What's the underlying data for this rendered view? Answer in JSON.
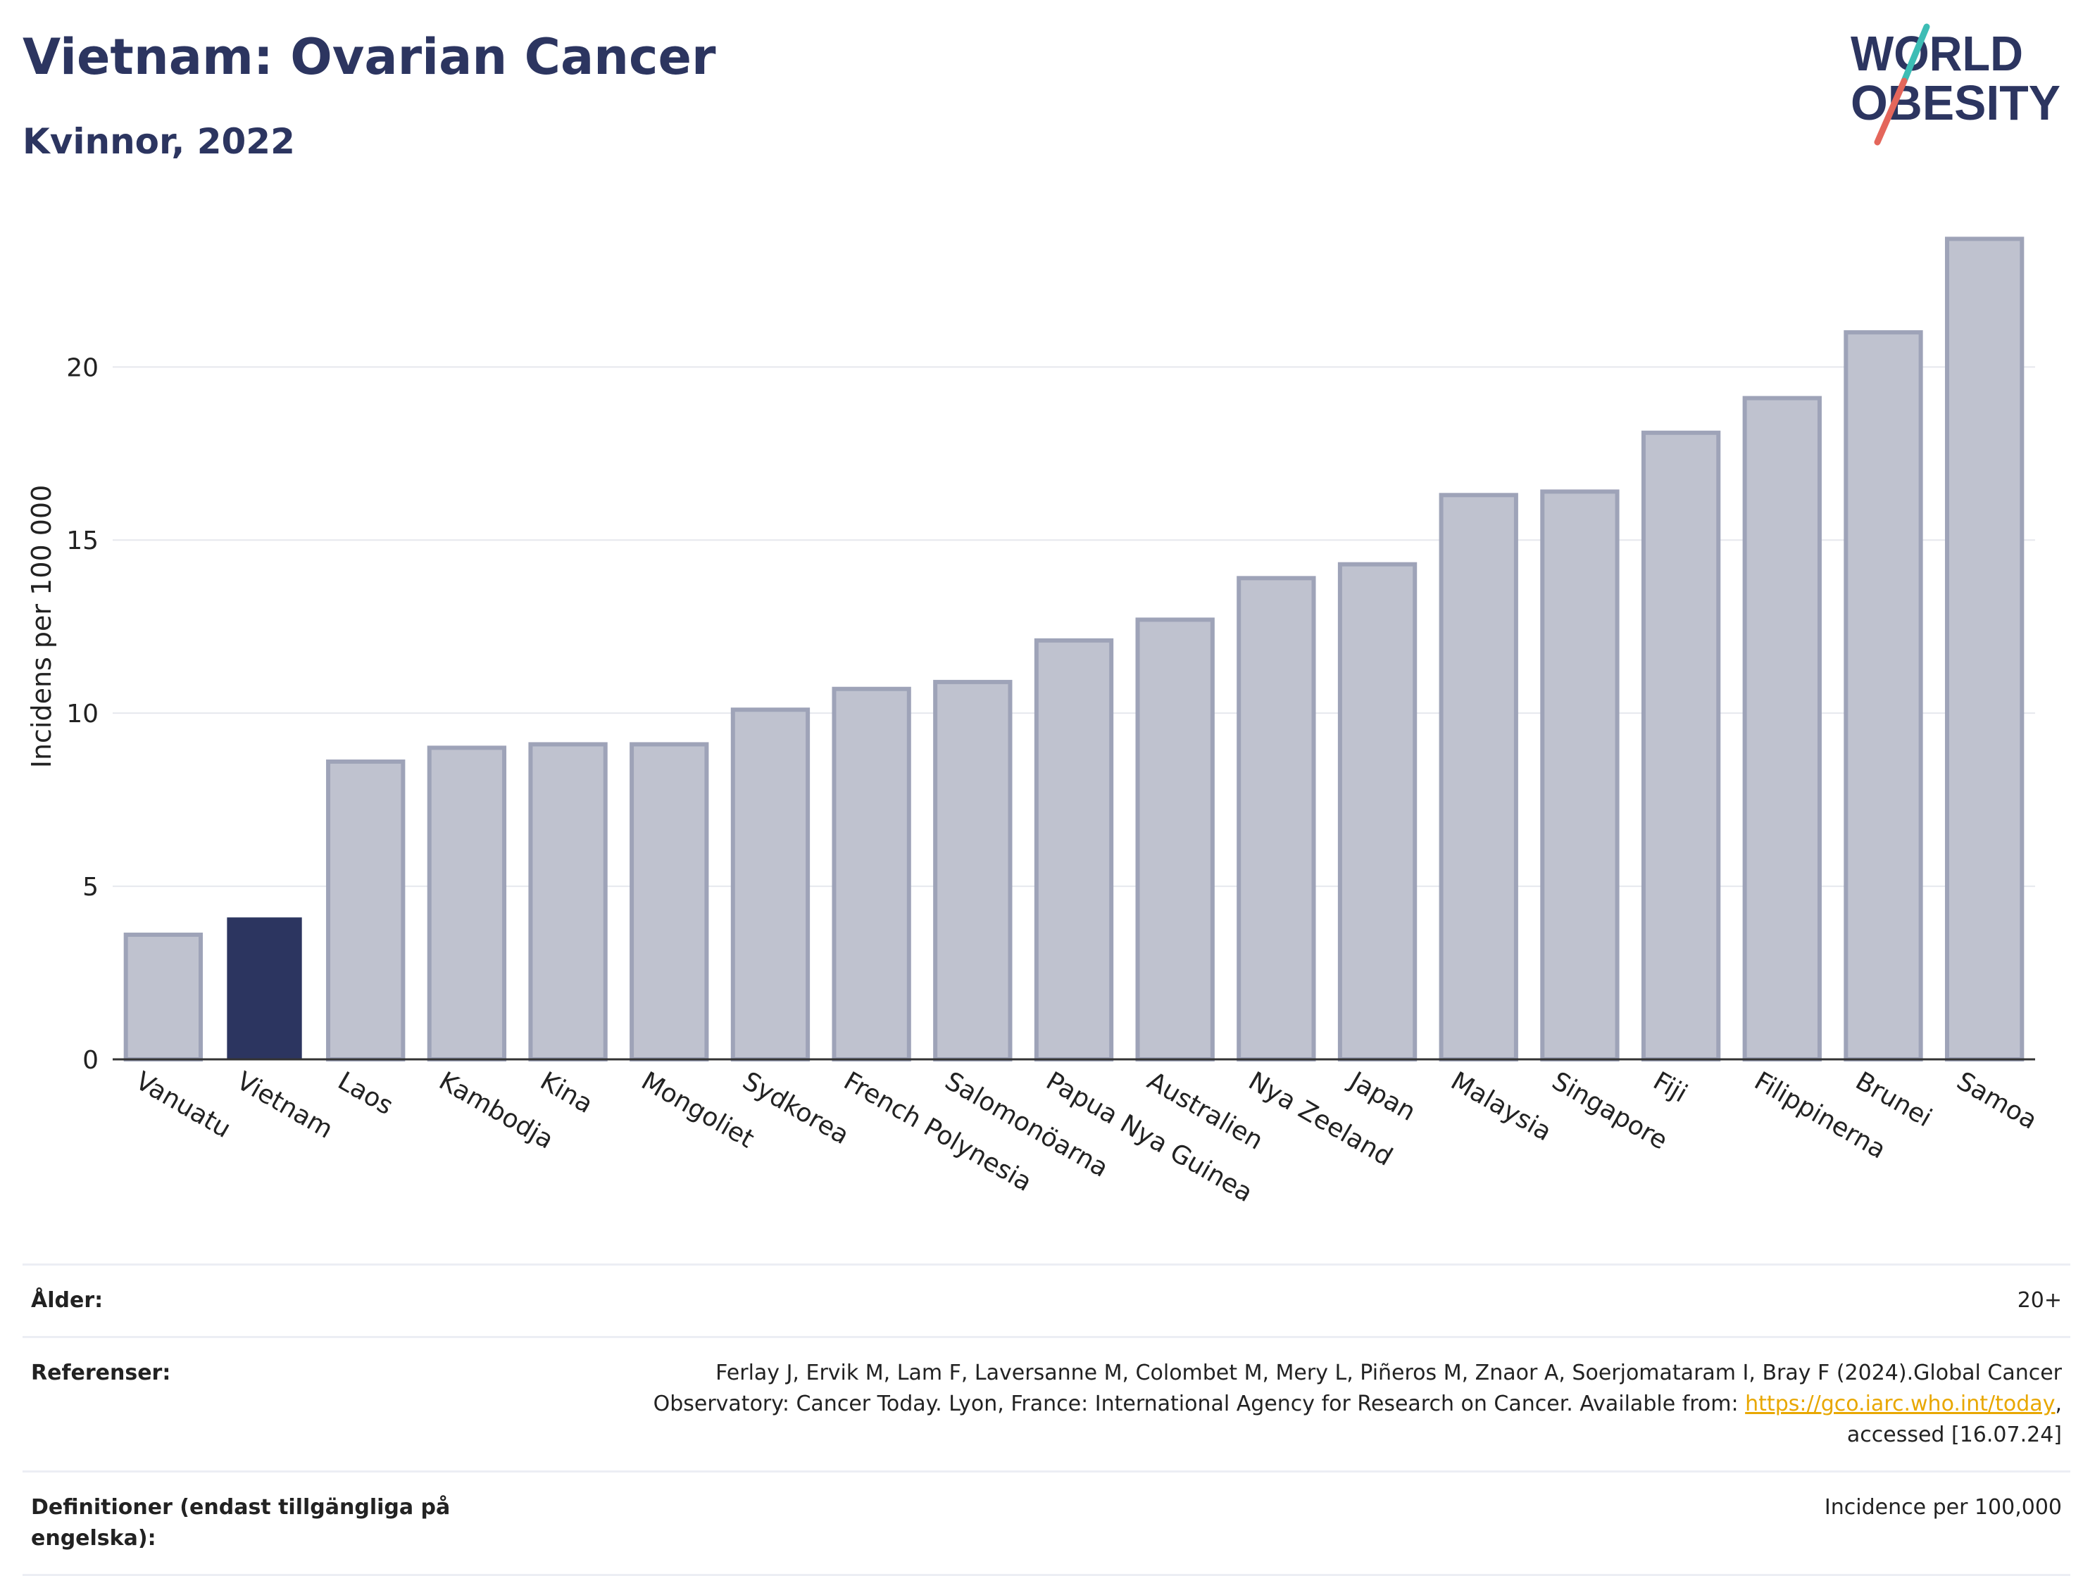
{
  "header": {
    "title": "Vietnam: Ovarian Cancer",
    "subtitle": "Kvinnor, 2022"
  },
  "logo": {
    "line1": "WORLD",
    "line2": "OBESITY",
    "colors": {
      "text": "#2c3560",
      "teal": "#3dbdb5",
      "coral": "#e4665b"
    }
  },
  "chart_data": {
    "type": "bar",
    "title": "Vietnam: Ovarian Cancer",
    "subtitle": "Kvinnor, 2022",
    "xlabel": "",
    "ylabel": "Incidens per 100 000",
    "ylim": [
      0,
      24.5
    ],
    "yticks": [
      0,
      5,
      10,
      15,
      20
    ],
    "grid": true,
    "categories": [
      "Vanuatu",
      "Vietnam",
      "Laos",
      "Kambodja",
      "Kina",
      "Mongoliet",
      "Sydkorea",
      "French Polynesia",
      "Salomonöarna",
      "Papua Nya Guinea",
      "Australien",
      "Nya Zeeland",
      "Japan",
      "Malaysia",
      "Singapore",
      "Fiji",
      "Filippinerna",
      "Brunei",
      "Samoa"
    ],
    "values": [
      3.6,
      4.1,
      8.6,
      9.0,
      9.1,
      9.1,
      10.1,
      10.7,
      10.9,
      12.1,
      12.7,
      13.9,
      14.3,
      16.3,
      16.4,
      18.1,
      19.1,
      21.0,
      23.7
    ],
    "highlight": "Vietnam",
    "colors": {
      "highlight": "#2c3560",
      "bar_fill": "#bfc2cf",
      "bar_stroke": "#9ea3b8",
      "grid": "#e6e8ee",
      "axis": "#333333"
    }
  },
  "info": {
    "rows": [
      {
        "label": "Ålder:",
        "value": "20+"
      },
      {
        "label": "Referenser:",
        "value_parts": {
          "before": "Ferlay J, Ervik M, Lam F, Laversanne M, Colombet M, Mery L, Piñeros M, Znaor A, Soerjomataram I, Bray F (2024).Global Cancer Observatory: Cancer Today. Lyon, France: International Agency for Research on Cancer. Available from: ",
          "link": "https://gco.iarc.who.int/today",
          "after": ", accessed [16.07.24]"
        }
      },
      {
        "label": "Definitioner (endast tillgängliga på engelska):",
        "value": "Incidence per 100,000"
      }
    ]
  }
}
